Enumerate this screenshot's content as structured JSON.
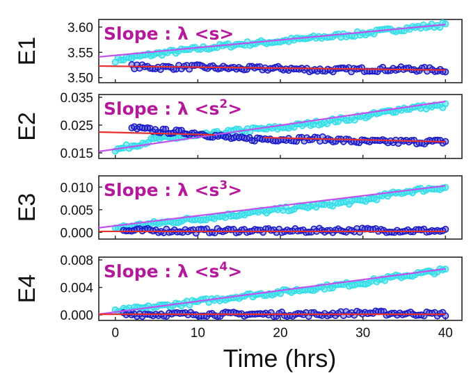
{
  "figure": {
    "xlabel": "Time (hrs)",
    "x_ticks": [
      0,
      10,
      20,
      30,
      40
    ],
    "xlim": [
      -2,
      42
    ],
    "colors": {
      "cyan_series": "#33dde8",
      "blue_series": "#1a1ac8",
      "cyan_fit": "#c050f0",
      "blue_fit": "#e53030",
      "annotation": "#b5199b"
    }
  },
  "chart_data": [
    {
      "type": "scatter",
      "ylabel": "E1",
      "ylim": [
        3.49,
        3.615
      ],
      "y_ticks": [
        "3.60",
        "3.55",
        "3.50"
      ],
      "y_tick_values": [
        3.6,
        3.55,
        3.5
      ],
      "annotation": {
        "prefix": "Slope : λ <s",
        "sup": "",
        "suffix": ">"
      },
      "series": [
        {
          "x": [
            0,
            5,
            10,
            15,
            20,
            25,
            30,
            35,
            40
          ],
          "values": [
            3.535,
            3.547,
            3.557,
            3.566,
            3.572,
            3.58,
            3.587,
            3.597,
            3.605
          ]
        },
        {
          "x": [
            2,
            5,
            10,
            15,
            20,
            25,
            30,
            35,
            40
          ],
          "values": [
            3.522,
            3.52,
            3.521,
            3.518,
            3.518,
            3.515,
            3.516,
            3.517,
            3.515
          ]
        }
      ],
      "fits": [
        {
          "x": [
            -2,
            40
          ],
          "values": [
            3.541,
            3.605
          ]
        },
        {
          "x": [
            -2,
            40
          ],
          "values": [
            3.523,
            3.515
          ]
        }
      ]
    },
    {
      "type": "scatter",
      "ylabel": "E2",
      "ylim": [
        0.013,
        0.036
      ],
      "y_ticks": [
        "0.035",
        "0.025",
        "0.015"
      ],
      "y_tick_values": [
        0.035,
        0.025,
        0.015
      ],
      "annotation": {
        "prefix": "Slope : λ <s",
        "sup": "2",
        "suffix": ">"
      },
      "series": [
        {
          "x": [
            0,
            5,
            10,
            15,
            20,
            25,
            30,
            35,
            40
          ],
          "values": [
            0.016,
            0.02,
            0.021,
            0.023,
            0.024,
            0.026,
            0.028,
            0.031,
            0.032
          ]
        },
        {
          "x": [
            2,
            5,
            10,
            15,
            20,
            25,
            30,
            35,
            40
          ],
          "values": [
            0.024,
            0.023,
            0.022,
            0.02,
            0.02,
            0.02,
            0.019,
            0.019,
            0.019
          ]
        }
      ],
      "fits": [
        {
          "x": [
            -2,
            40
          ],
          "values": [
            0.0155,
            0.0335
          ]
        },
        {
          "x": [
            -2,
            12
          ],
          "values": [
            0.0225,
            0.0215
          ]
        },
        {
          "x": [
            18,
            40
          ],
          "values": [
            0.0205,
            0.019
          ]
        }
      ]
    },
    {
      "type": "scatter",
      "ylabel": "E3",
      "ylim": [
        -0.0015,
        0.0125
      ],
      "y_ticks": [
        "0.010",
        "0.005",
        "0.000"
      ],
      "y_tick_values": [
        0.01,
        0.005,
        0.0
      ],
      "annotation": {
        "prefix": "Slope : λ <s",
        "sup": "3",
        "suffix": ">"
      },
      "series": [
        {
          "x": [
            0,
            5,
            10,
            15,
            20,
            25,
            30,
            35,
            40
          ],
          "values": [
            0.001,
            0.002,
            0.003,
            0.004,
            0.005,
            0.006,
            0.007,
            0.009,
            0.01
          ]
        },
        {
          "x": [
            1,
            5,
            10,
            15,
            20,
            25,
            30,
            35,
            40
          ],
          "values": [
            0.0003,
            0.0004,
            0.0003,
            0.0004,
            0.0003,
            0.0004,
            0.0005,
            0.0004,
            0.0003
          ]
        }
      ],
      "fits": [
        {
          "x": [
            -2,
            40
          ],
          "values": [
            0.001,
            0.0103
          ]
        },
        {
          "x": [
            -2,
            40
          ],
          "values": [
            0.0002,
            0.0002
          ]
        }
      ]
    },
    {
      "type": "scatter",
      "ylabel": "E4",
      "ylim": [
        -0.0008,
        0.0084
      ],
      "y_ticks": [
        "0.008",
        "0.004",
        "0.000"
      ],
      "y_tick_values": [
        0.008,
        0.004,
        0.0
      ],
      "annotation": {
        "prefix": "Slope : λ <s",
        "sup": "4",
        "suffix": ">"
      },
      "series": [
        {
          "x": [
            0,
            5,
            10,
            15,
            20,
            25,
            30,
            35,
            40
          ],
          "values": [
            0.0005,
            0.0012,
            0.0019,
            0.0027,
            0.0033,
            0.004,
            0.0047,
            0.0057,
            0.0065
          ]
        },
        {
          "x": [
            1,
            5,
            10,
            15,
            20,
            25,
            30,
            35,
            40
          ],
          "values": [
            0.0001,
            0.0001,
            0.0001,
            0.0001,
            0.0001,
            0.0001,
            0.0003,
            0.0002,
            0.0001
          ]
        }
      ],
      "fits": [
        {
          "x": [
            -2,
            40
          ],
          "values": [
            0.0001,
            0.0067
          ]
        },
        {
          "x": [
            -2,
            40
          ],
          "values": [
            0.0001,
            0.0001
          ]
        }
      ]
    }
  ]
}
